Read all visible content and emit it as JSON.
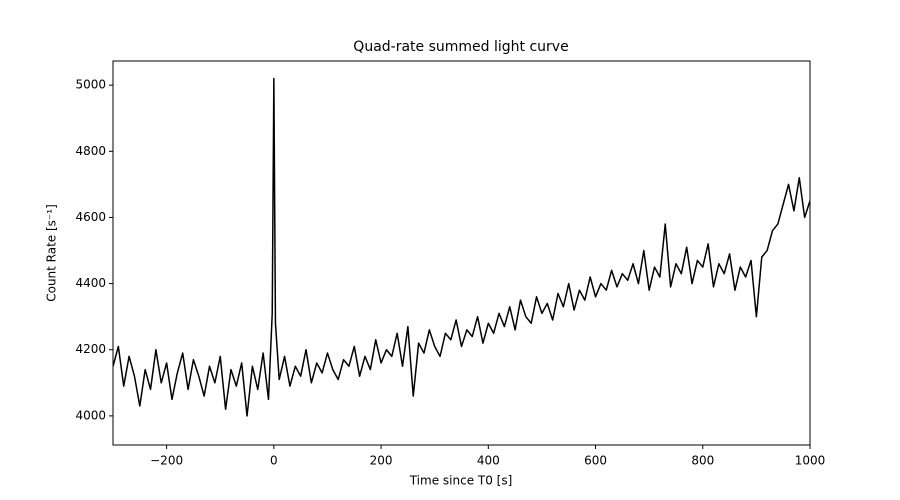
{
  "chart_data": {
    "type": "line",
    "title": "Quad-rate summed light curve",
    "xlabel": "Time since T0 [s]",
    "ylabel": "Count Rate [s⁻¹]",
    "color": "#000000",
    "x": [
      -300,
      -290,
      -280,
      -270,
      -260,
      -250,
      -240,
      -230,
      -220,
      -210,
      -200,
      -190,
      -180,
      -170,
      -160,
      -150,
      -140,
      -130,
      -120,
      -110,
      -100,
      -90,
      -80,
      -70,
      -60,
      -50,
      -40,
      -30,
      -20,
      -10,
      -3,
      0,
      3,
      10,
      20,
      30,
      40,
      50,
      60,
      70,
      80,
      90,
      100,
      110,
      120,
      130,
      140,
      150,
      160,
      170,
      180,
      190,
      200,
      210,
      220,
      230,
      240,
      250,
      260,
      270,
      280,
      290,
      300,
      310,
      320,
      330,
      340,
      350,
      360,
      370,
      380,
      390,
      400,
      410,
      420,
      430,
      440,
      450,
      460,
      470,
      480,
      490,
      500,
      510,
      520,
      530,
      540,
      550,
      560,
      570,
      580,
      590,
      600,
      610,
      620,
      630,
      640,
      650,
      660,
      670,
      680,
      690,
      700,
      710,
      720,
      730,
      740,
      750,
      760,
      770,
      780,
      790,
      800,
      810,
      820,
      830,
      840,
      850,
      860,
      870,
      880,
      890,
      900,
      910,
      920,
      930,
      940,
      950,
      960,
      970,
      980,
      990,
      1000
    ],
    "values": [
      4150,
      4210,
      4090,
      4180,
      4120,
      4030,
      4140,
      4080,
      4200,
      4100,
      4160,
      4050,
      4130,
      4190,
      4080,
      4170,
      4120,
      4060,
      4150,
      4100,
      4180,
      4020,
      4140,
      4090,
      4160,
      4000,
      4150,
      4080,
      4190,
      4050,
      4310,
      5020,
      4280,
      4110,
      4180,
      4090,
      4150,
      4120,
      4200,
      4100,
      4160,
      4130,
      4190,
      4140,
      4110,
      4170,
      4150,
      4210,
      4120,
      4180,
      4140,
      4230,
      4160,
      4200,
      4180,
      4250,
      4150,
      4270,
      4060,
      4220,
      4190,
      4260,
      4210,
      4180,
      4250,
      4230,
      4290,
      4210,
      4260,
      4240,
      4300,
      4220,
      4280,
      4250,
      4310,
      4270,
      4330,
      4260,
      4350,
      4300,
      4280,
      4360,
      4310,
      4340,
      4290,
      4370,
      4330,
      4400,
      4320,
      4380,
      4350,
      4420,
      4360,
      4400,
      4380,
      4440,
      4390,
      4430,
      4410,
      4460,
      4400,
      4500,
      4380,
      4450,
      4420,
      4580,
      4390,
      4460,
      4430,
      4510,
      4400,
      4470,
      4450,
      4520,
      4390,
      4460,
      4430,
      4490,
      4380,
      4450,
      4420,
      4470,
      4300,
      4480,
      4500,
      4560,
      4580,
      4640,
      4700,
      4620,
      4720,
      4600,
      4650
    ],
    "xlim": [
      -300,
      1000
    ],
    "xticks": [
      {
        "value": -200,
        "label": "−200"
      },
      0,
      200,
      400,
      600,
      800,
      1000
    ],
    "ylim": [
      3912,
      5073
    ],
    "yticks": [
      4000,
      4200,
      4400,
      4600,
      4800,
      5000
    ],
    "grid": false
  }
}
